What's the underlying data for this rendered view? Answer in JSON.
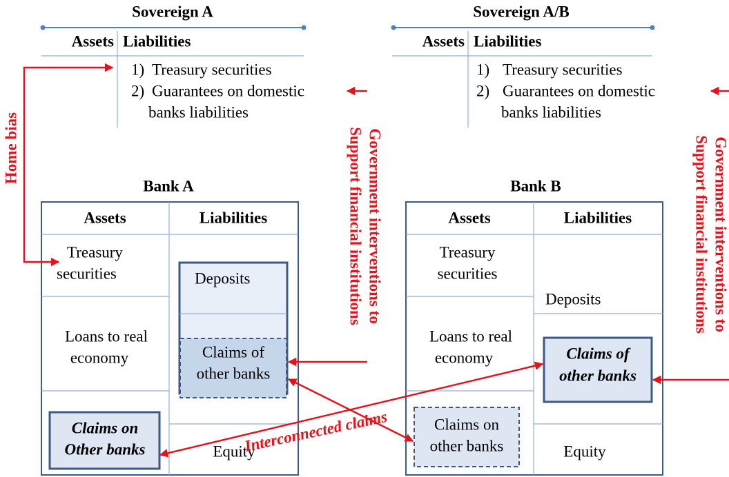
{
  "sovereigns": [
    {
      "title": "Sovereign A",
      "assets_header": "Assets",
      "liabilities_header": "Liabilities",
      "items": [
        {
          "number": "1)",
          "lines": [
            "Treasury securities"
          ]
        },
        {
          "number": "2)",
          "lines": [
            "Guarantees on domestic",
            "banks liabilities"
          ]
        }
      ]
    },
    {
      "title": "Sovereign A/B",
      "assets_header": "Assets",
      "liabilities_header": "Liabilities",
      "items": [
        {
          "number": "1)",
          "lines": [
            "Treasury securities"
          ]
        },
        {
          "number": "2)",
          "lines": [
            "Guarantees on domestic",
            "banks liabilities"
          ]
        }
      ]
    }
  ],
  "banks": [
    {
      "title": "Bank A",
      "assets_header": "Assets",
      "liabilities_header": "Liabilities",
      "assets": [
        {
          "lines": [
            "Treasury",
            "securities"
          ]
        },
        {
          "lines": [
            "Loans to real",
            "economy"
          ]
        },
        {
          "lines": [
            "Claims on",
            "Other banks"
          ]
        }
      ],
      "liabilities": [
        {
          "lines": [
            "Deposits"
          ]
        },
        {
          "lines": [
            "Claims of",
            "other banks"
          ]
        },
        {
          "lines": [
            "Equity"
          ]
        }
      ]
    },
    {
      "title": "Bank B",
      "assets_header": "Assets",
      "liabilities_header": "Liabilities",
      "assets": [
        {
          "lines": [
            "Treasury",
            "securities"
          ]
        },
        {
          "lines": [
            "Loans to real",
            "economy"
          ]
        },
        {
          "lines": [
            "Claims on",
            "other banks"
          ]
        }
      ],
      "liabilities": [
        {
          "lines": [
            "Deposits"
          ]
        },
        {
          "lines": [
            "Claims of",
            "other banks"
          ]
        },
        {
          "lines": [
            "Equity"
          ]
        }
      ]
    }
  ],
  "annotations": {
    "home_bias": "Home bias",
    "government_a": [
      "Government interventions to",
      "Support financial institutions"
    ],
    "government_b": [
      "Government interventions to",
      "Support financial institutions"
    ],
    "interconnected": "Interconnected claims"
  }
}
